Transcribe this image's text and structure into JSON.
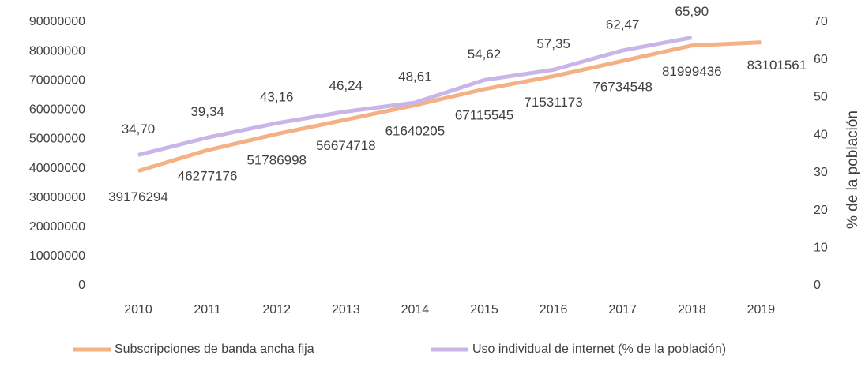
{
  "chart_data": {
    "type": "line",
    "categories": [
      "2010",
      "2011",
      "2012",
      "2013",
      "2014",
      "2015",
      "2016",
      "2017",
      "2018",
      "2019"
    ],
    "series": [
      {
        "name": "Subscripciones de banda ancha fija",
        "color": "#f4b183",
        "values": [
          39176294,
          46277176,
          51786998,
          56674718,
          61640205,
          67115545,
          71531173,
          76734548,
          81999436,
          83101561
        ]
      },
      {
        "name": "Uso individual de internet (% de la población)",
        "color": "#c9b5e8",
        "axis": "y2",
        "values": [
          34.7,
          39.34,
          43.16,
          46.24,
          48.61,
          54.62,
          57.35,
          62.47,
          65.9,
          null
        ],
        "value_labels": [
          "34,70",
          "39,34",
          "43,16",
          "46,24",
          "48,61",
          "54,62",
          "57,35",
          "62,47",
          "65,90",
          null
        ]
      }
    ],
    "ylim": [
      0,
      90000000
    ],
    "yticks": [
      0,
      10000000,
      20000000,
      30000000,
      40000000,
      50000000,
      60000000,
      70000000,
      80000000,
      90000000
    ],
    "y2lim": [
      0,
      70
    ],
    "y2ticks": [
      0,
      10,
      20,
      30,
      40,
      50,
      60,
      70
    ],
    "y2label": "% de la población",
    "legend": "bottom"
  }
}
